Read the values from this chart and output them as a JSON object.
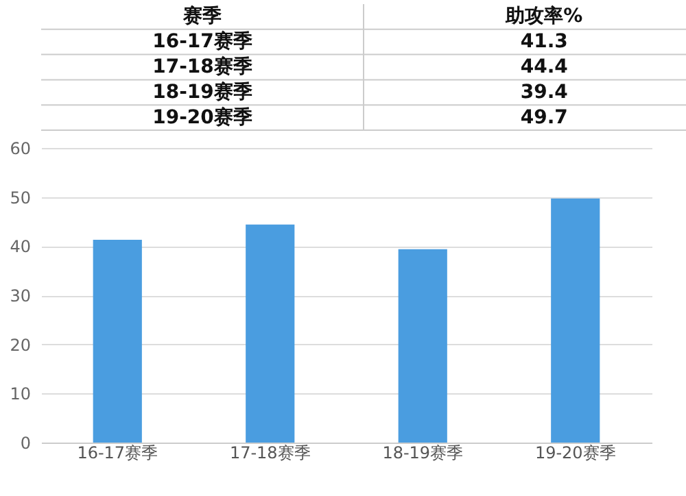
{
  "chart_data": {
    "type": "bar",
    "categories": [
      "16-17赛季",
      "17-18赛季",
      "18-19赛季",
      "19-20赛季"
    ],
    "values": [
      41.3,
      44.4,
      39.4,
      49.7
    ],
    "color": "#4a9de0",
    "ylim": [
      0,
      60
    ],
    "yticks": [
      0,
      10,
      20,
      30,
      40,
      50,
      60
    ],
    "grid": "y",
    "annotations": [
      "赛季",
      "助攻率%",
      "16-17赛季",
      "41.3",
      "17-18赛季",
      "44.4",
      "18-19赛季",
      "39.4",
      "19-20赛季",
      "49.7"
    ]
  }
}
